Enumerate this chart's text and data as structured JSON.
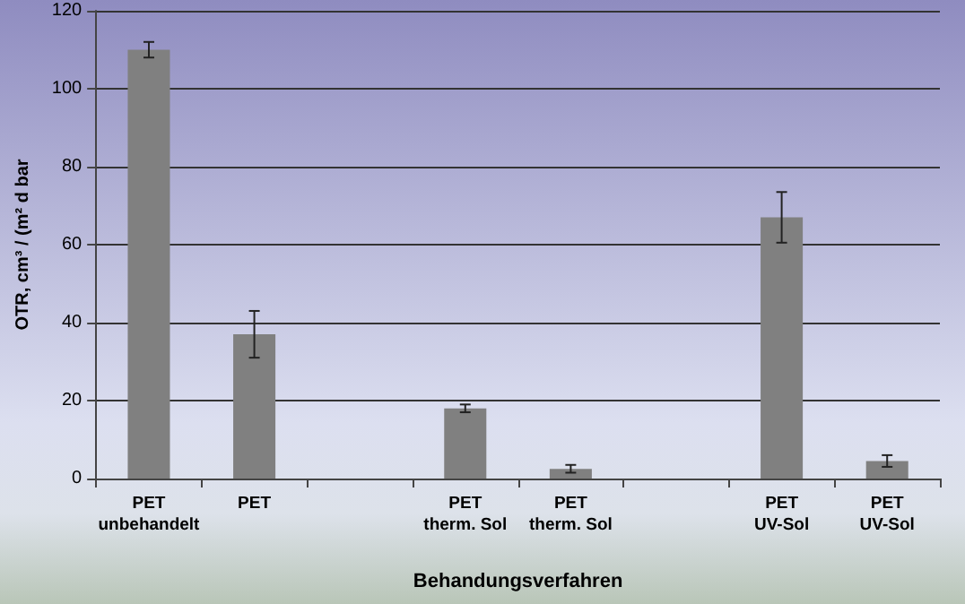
{
  "chart_data": {
    "type": "bar",
    "xlabel": "Behandungsverfahren",
    "ylabel": "OTR, cm³ / (m² d bar",
    "categories": [
      "PET\nunbehandelt",
      "PET",
      null,
      "PET\ntherm. Sol",
      "PET\ntherm. Sol",
      null,
      "PET\nUV-Sol",
      "PET\nUV-Sol"
    ],
    "values": [
      110,
      37,
      null,
      18,
      2.5,
      null,
      67,
      4.5
    ],
    "errors": [
      2,
      6,
      null,
      1,
      1,
      null,
      6.5,
      1.5
    ],
    "color": "#808080",
    "ylim": [
      0,
      120
    ],
    "yticks": [
      0,
      20,
      40,
      60,
      80,
      100,
      120
    ],
    "grid": "y"
  }
}
